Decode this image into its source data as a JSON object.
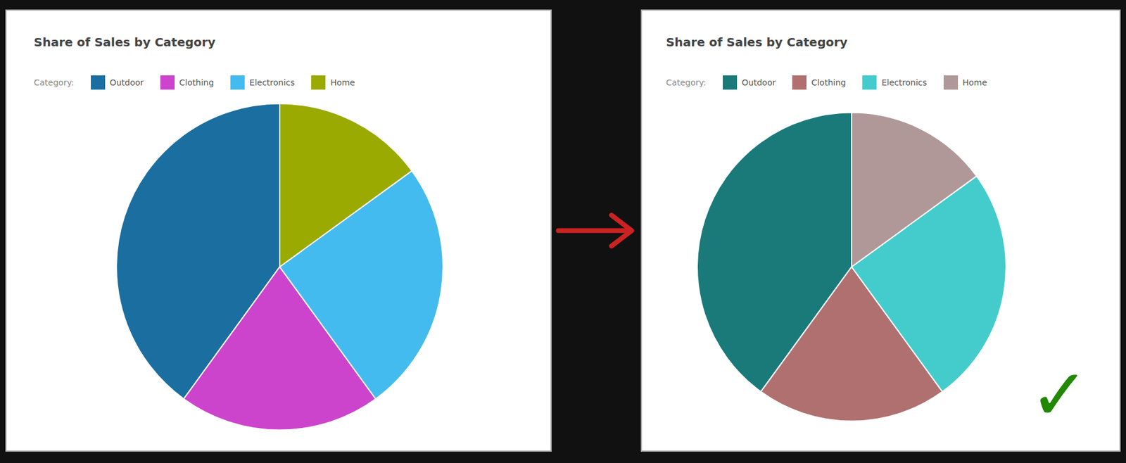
{
  "chart_data": [
    {
      "type": "pie",
      "title": "Share of Sales by Category",
      "categories": [
        "Outdoor",
        "Clothing",
        "Electronics",
        "Home"
      ],
      "values": [
        40,
        20,
        25,
        15
      ],
      "colors": [
        "#1a6fa0",
        "#cc44cc",
        "#44bbee",
        "#9aaa00"
      ],
      "legend": "top",
      "annotations": [
        {
          "text": "Category:"
        }
      ]
    },
    {
      "type": "pie",
      "title": "Share of Sales by Category",
      "categories": [
        "Outdoor",
        "Clothing",
        "Electronics",
        "Home"
      ],
      "values": [
        40,
        20,
        25,
        15
      ],
      "colors": [
        "#1a7a7a",
        "#b07070",
        "#44cccc",
        "#b09898"
      ],
      "legend": "top",
      "annotations": [
        {
          "text": "Category:"
        },
        {
          "text": "✓",
          "color": "#228800"
        }
      ]
    }
  ]
}
